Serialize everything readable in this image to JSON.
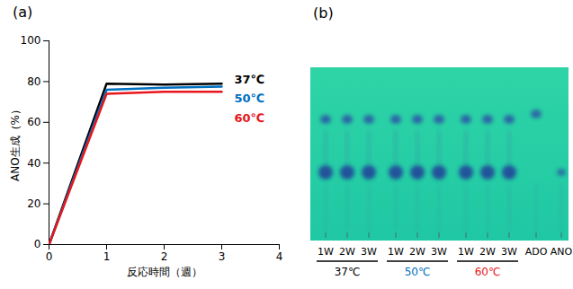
{
  "chart_data": {
    "type": "line",
    "panel": "(a)",
    "x_label": "反応時間（週）",
    "y_label": "ANO生成（%）",
    "x": [
      0,
      1,
      2,
      3
    ],
    "series": [
      {
        "name": "37℃",
        "color": "#000000",
        "values": [
          0,
          79,
          78.5,
          79
        ]
      },
      {
        "name": "50℃",
        "color": "#0070c0",
        "values": [
          0,
          76,
          77,
          77.5
        ]
      },
      {
        "name": "60℃",
        "color": "#e8161c",
        "values": [
          0,
          74,
          75,
          75
        ]
      }
    ],
    "xlim": [
      0,
      4
    ],
    "xticks": [
      0,
      1,
      2,
      3,
      4
    ],
    "ylim": [
      0,
      100
    ],
    "yticks": [
      0,
      20,
      40,
      60,
      80,
      100
    ],
    "grid": false
  },
  "tlc_plate": {
    "panel": "(b)",
    "samples": [
      {
        "group": "37℃",
        "color": "#000000",
        "lanes": [
          "1W",
          "2W",
          "3W"
        ]
      },
      {
        "group": "50℃",
        "color": "#0070c0",
        "lanes": [
          "1W",
          "2W",
          "3W"
        ]
      },
      {
        "group": "60℃",
        "color": "#e8161c",
        "lanes": [
          "1W",
          "2W",
          "3W"
        ]
      }
    ],
    "standards": [
      "ADO",
      "ANO"
    ]
  }
}
